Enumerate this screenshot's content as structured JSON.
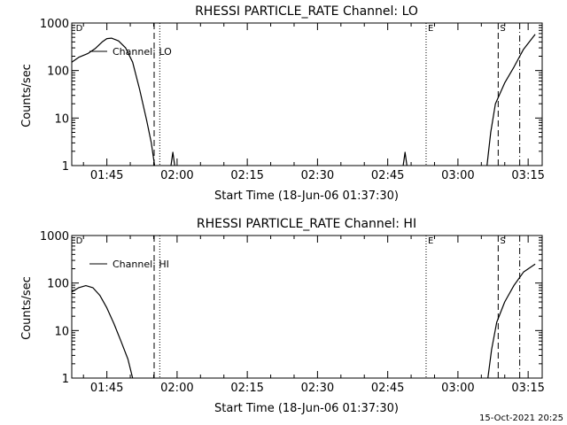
{
  "footer": {
    "timestamp": "15-Oct-2021 20:25"
  },
  "chart_data": [
    {
      "type": "line",
      "title": "RHESSI PARTICLE_RATE Channel: LO",
      "xlabel": "Start Time (18-Jun-06 01:37:30)",
      "ylabel": "Counts/sec",
      "yscale": "log",
      "ylim": [
        1,
        1000
      ],
      "xlim_minutes": [
        97.5,
        198.0
      ],
      "x_ticks": [
        {
          "t": 105,
          "label": "01:45"
        },
        {
          "t": 120,
          "label": "02:00"
        },
        {
          "t": 135,
          "label": "02:15"
        },
        {
          "t": 150,
          "label": "02:30"
        },
        {
          "t": 165,
          "label": "02:45"
        },
        {
          "t": 180,
          "label": "03:00"
        },
        {
          "t": 195,
          "label": "03:15"
        }
      ],
      "y_ticks": [
        {
          "v": 1,
          "label": "1"
        },
        {
          "v": 10,
          "label": "10"
        },
        {
          "v": 100,
          "label": "100"
        },
        {
          "v": 1000,
          "label": "1000"
        }
      ],
      "legend": {
        "position": "top-left",
        "entries": [
          "Channel: LO"
        ]
      },
      "series": [
        {
          "name": "Channel: LO",
          "segments": [
            [
              [
                97.5,
                150
              ],
              [
                99,
                190
              ],
              [
                101,
                230
              ],
              [
                102.5,
                290
              ],
              [
                104,
                400
              ],
              [
                105,
                470
              ],
              [
                106,
                480
              ],
              [
                107.5,
                420
              ],
              [
                109,
                300
              ],
              [
                110.5,
                150
              ],
              [
                112,
                40
              ],
              [
                113.5,
                9
              ],
              [
                114.5,
                3
              ],
              [
                115.2,
                1
              ]
            ],
            [
              [
                118.7,
                1
              ],
              [
                119.1,
                1.9
              ],
              [
                119.5,
                1
              ]
            ],
            [
              [
                168.3,
                1
              ],
              [
                168.7,
                1.9
              ],
              [
                169.1,
                1
              ]
            ],
            [
              [
                186.2,
                1
              ],
              [
                187,
                5
              ],
              [
                188,
                20
              ],
              [
                190,
                55
              ],
              [
                192,
                120
              ],
              [
                194,
                280
              ],
              [
                196.5,
                580
              ]
            ]
          ]
        }
      ],
      "markers": [
        {
          "t": 98.0,
          "label": "D",
          "style": "none"
        },
        {
          "t": 115.1,
          "label": "",
          "style": "dashed"
        },
        {
          "t": 116.3,
          "label": "",
          "style": "dotted"
        },
        {
          "t": 173.2,
          "label": "E",
          "style": "dotted"
        },
        {
          "t": 188.6,
          "label": "S",
          "style": "dashed"
        },
        {
          "t": 193.2,
          "label": "",
          "style": "dashdot"
        }
      ]
    },
    {
      "type": "line",
      "title": "RHESSI PARTICLE_RATE Channel: HI",
      "xlabel": "Start Time (18-Jun-06 01:37:30)",
      "ylabel": "Counts/sec",
      "yscale": "log",
      "ylim": [
        1,
        1000
      ],
      "xlim_minutes": [
        97.5,
        198.0
      ],
      "x_ticks": [
        {
          "t": 105,
          "label": "01:45"
        },
        {
          "t": 120,
          "label": "02:00"
        },
        {
          "t": 135,
          "label": "02:15"
        },
        {
          "t": 150,
          "label": "02:30"
        },
        {
          "t": 165,
          "label": "02:45"
        },
        {
          "t": 180,
          "label": "03:00"
        },
        {
          "t": 195,
          "label": "03:15"
        }
      ],
      "y_ticks": [
        {
          "v": 1,
          "label": "1"
        },
        {
          "v": 10,
          "label": "10"
        },
        {
          "v": 100,
          "label": "100"
        },
        {
          "v": 1000,
          "label": "1000"
        }
      ],
      "legend": {
        "position": "top-left",
        "entries": [
          "Channel: HI"
        ]
      },
      "series": [
        {
          "name": "Channel: HI",
          "segments": [
            [
              [
                97.5,
                65
              ],
              [
                99,
                80
              ],
              [
                100.5,
                88
              ],
              [
                102,
                80
              ],
              [
                103.5,
                55
              ],
              [
                105,
                30
              ],
              [
                106.5,
                14
              ],
              [
                108,
                6
              ],
              [
                109.5,
                2.5
              ],
              [
                110.5,
                1
              ]
            ],
            [
              [
                186.4,
                1
              ],
              [
                187.2,
                4
              ],
              [
                188.3,
                15
              ],
              [
                190,
                40
              ],
              [
                192,
                90
              ],
              [
                194,
                170
              ],
              [
                196.5,
                250
              ]
            ]
          ]
        }
      ],
      "markers": [
        {
          "t": 98.0,
          "label": "D",
          "style": "none"
        },
        {
          "t": 115.1,
          "label": "",
          "style": "dashed"
        },
        {
          "t": 116.3,
          "label": "",
          "style": "dotted"
        },
        {
          "t": 173.2,
          "label": "E",
          "style": "dotted"
        },
        {
          "t": 188.6,
          "label": "S",
          "style": "dashed"
        },
        {
          "t": 193.2,
          "label": "",
          "style": "dashdot"
        }
      ]
    }
  ]
}
